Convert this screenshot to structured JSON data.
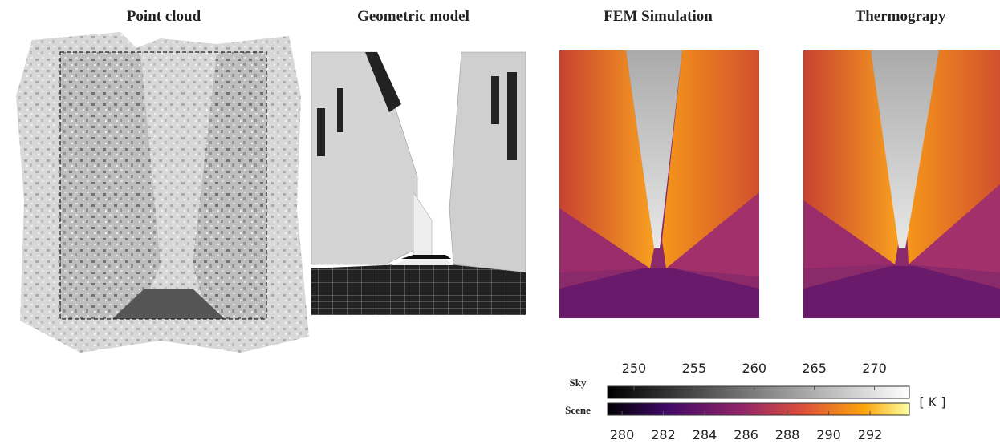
{
  "panels": [
    {
      "title": "Point cloud"
    },
    {
      "title": "Geometric model"
    },
    {
      "title": "FEM Simulation"
    },
    {
      "title": "Thermograpy"
    }
  ],
  "colorbars": {
    "unit": "[ K ]",
    "sky": {
      "label": "Sky",
      "lim": [
        247.8,
        272.9
      ],
      "ticks": [
        250,
        255,
        260,
        265,
        270
      ]
    },
    "scene": {
      "label": "Scene",
      "lim": [
        279.3,
        293.9
      ],
      "ticks": [
        280,
        282,
        284,
        286,
        288,
        290,
        292
      ]
    }
  }
}
